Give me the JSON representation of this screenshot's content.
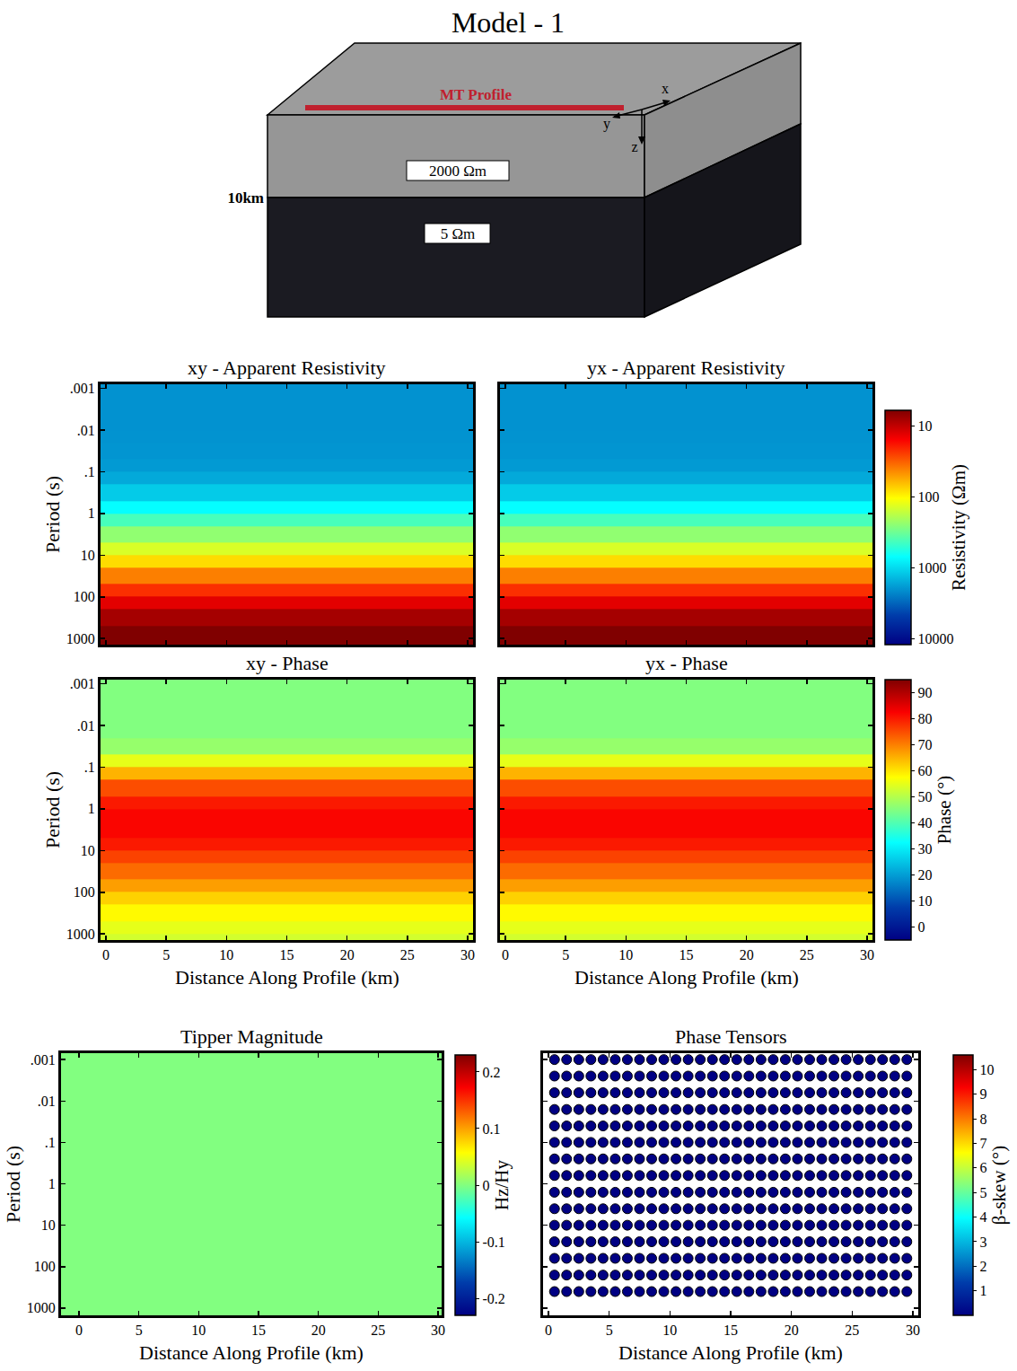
{
  "diagram": {
    "title": "Model - 1",
    "profile": "MT Profile",
    "layers": [
      "2000 Ωm",
      "5 Ωm"
    ],
    "depth": "10km",
    "axes": [
      "x",
      "y",
      "z"
    ]
  },
  "chart_data": [
    {
      "type": "heatmap",
      "title": "xy - Apparent Resistivity",
      "ylabel": "Period (s)",
      "log": "y",
      "tick_labels": "y",
      "xlim": [
        -0.45,
        30.45
      ],
      "xticks": [
        0,
        5,
        10,
        15,
        20,
        25,
        30
      ],
      "ylim": [
        1400,
        0.0008
      ],
      "yticks": [
        {
          "value": 0.001,
          "label": ".001"
        },
        {
          "value": 0.01,
          "label": ".01"
        },
        {
          "value": 0.1,
          "label": ".1"
        },
        1,
        10,
        100,
        1000
      ],
      "x_edges": [
        -0.5,
        30.5
      ],
      "y_edges": [
        0.0007,
        0.001,
        0.002,
        0.005,
        0.01,
        0.02,
        0.05,
        0.1,
        0.2,
        0.5,
        1,
        2,
        5,
        10,
        20,
        50,
        100,
        200,
        500,
        1000,
        1500
      ],
      "cells": [
        [
          2000
        ],
        [
          2000
        ],
        [
          2000
        ],
        [
          2000
        ],
        [
          1980
        ],
        [
          1950
        ],
        [
          1850
        ],
        [
          1600
        ],
        [
          1150
        ],
        [
          700
        ],
        [
          420
        ],
        [
          240
        ],
        [
          140
        ],
        [
          80
        ],
        [
          40
        ],
        [
          22
        ],
        [
          13
        ],
        [
          8
        ],
        [
          6
        ],
        [
          5.5
        ]
      ],
      "colorbar": {
        "range": [
          6,
          12000
        ],
        "log": true
      }
    },
    {
      "type": "heatmap",
      "title": "yx - Apparent Resistivity",
      "log": "y",
      "tick_labels": false,
      "xlim": [
        -0.45,
        30.45
      ],
      "xticks": [
        0,
        5,
        10,
        15,
        20,
        25,
        30
      ],
      "ylim": [
        1400,
        0.0008
      ],
      "yticks": [
        {
          "value": 0.001,
          "label": ".001"
        },
        {
          "value": 0.01,
          "label": ".01"
        },
        {
          "value": 0.1,
          "label": ".1"
        },
        1,
        10,
        100,
        1000
      ],
      "x_edges": [
        -0.5,
        30.5
      ],
      "y_edges": [
        0.0007,
        0.001,
        0.002,
        0.005,
        0.01,
        0.02,
        0.05,
        0.1,
        0.2,
        0.5,
        1,
        2,
        5,
        10,
        20,
        50,
        100,
        200,
        500,
        1000,
        1500
      ],
      "cells": [
        [
          2000
        ],
        [
          2000
        ],
        [
          2000
        ],
        [
          2000
        ],
        [
          1980
        ],
        [
          1950
        ],
        [
          1850
        ],
        [
          1600
        ],
        [
          1150
        ],
        [
          700
        ],
        [
          420
        ],
        [
          240
        ],
        [
          140
        ],
        [
          80
        ],
        [
          40
        ],
        [
          22
        ],
        [
          13
        ],
        [
          8
        ],
        [
          6
        ],
        [
          5.5
        ]
      ],
      "colorbar": {
        "title": "Resistivity (Ωm)",
        "range": [
          6,
          12000
        ],
        "ticks": [
          10,
          100,
          1000,
          10000
        ],
        "log": true
      }
    },
    {
      "type": "heatmap",
      "title": "xy - Phase",
      "ylabel": "Period (s)",
      "xlabel": "Distance Along Profile (km)",
      "log": "y",
      "tick_labels": true,
      "xlim": [
        -0.45,
        30.45
      ],
      "xticks": [
        0,
        5,
        10,
        15,
        20,
        25,
        30
      ],
      "ylim": [
        1400,
        0.0008
      ],
      "yticks": [
        {
          "value": 0.001,
          "label": ".001"
        },
        {
          "value": 0.01,
          "label": ".01"
        },
        {
          "value": 0.1,
          "label": ".1"
        },
        1,
        10,
        100,
        1000
      ],
      "x_edges": [
        -0.5,
        30.5
      ],
      "y_edges": [
        0.0007,
        0.001,
        0.002,
        0.005,
        0.01,
        0.02,
        0.05,
        0.1,
        0.2,
        0.5,
        1,
        2,
        5,
        10,
        20,
        50,
        100,
        200,
        500,
        1000,
        1500
      ],
      "cells": [
        [
          45
        ],
        [
          45
        ],
        [
          45
        ],
        [
          45
        ],
        [
          45
        ],
        [
          47
        ],
        [
          55
        ],
        [
          65
        ],
        [
          75
        ],
        [
          80
        ],
        [
          82
        ],
        [
          82
        ],
        [
          80
        ],
        [
          76
        ],
        [
          72
        ],
        [
          67
        ],
        [
          62
        ],
        [
          58
        ],
        [
          55
        ],
        [
          53
        ]
      ],
      "colorbar": {
        "range": [
          -5,
          95
        ]
      }
    },
    {
      "type": "heatmap",
      "title": "yx - Phase",
      "xlabel": "Distance Along Profile (km)",
      "log": "y",
      "tick_labels": "x",
      "xlim": [
        -0.45,
        30.45
      ],
      "xticks": [
        0,
        5,
        10,
        15,
        20,
        25,
        30
      ],
      "ylim": [
        1400,
        0.0008
      ],
      "yticks": [
        {
          "value": 0.001,
          "label": ".001"
        },
        {
          "value": 0.01,
          "label": ".01"
        },
        {
          "value": 0.1,
          "label": ".1"
        },
        1,
        10,
        100,
        1000
      ],
      "x_edges": [
        -0.5,
        30.5
      ],
      "y_edges": [
        0.0007,
        0.001,
        0.002,
        0.005,
        0.01,
        0.02,
        0.05,
        0.1,
        0.2,
        0.5,
        1,
        2,
        5,
        10,
        20,
        50,
        100,
        200,
        500,
        1000,
        1500
      ],
      "cells": [
        [
          45
        ],
        [
          45
        ],
        [
          45
        ],
        [
          45
        ],
        [
          45
        ],
        [
          47
        ],
        [
          55
        ],
        [
          65
        ],
        [
          75
        ],
        [
          80
        ],
        [
          82
        ],
        [
          82
        ],
        [
          80
        ],
        [
          76
        ],
        [
          72
        ],
        [
          67
        ],
        [
          62
        ],
        [
          58
        ],
        [
          55
        ],
        [
          53
        ]
      ],
      "colorbar": {
        "title": "Phase (°)",
        "range": [
          -5,
          95
        ],
        "ticks": [
          0,
          10,
          20,
          30,
          40,
          50,
          60,
          70,
          80,
          90
        ]
      }
    },
    {
      "type": "heatmap",
      "title": "Tipper Magnitude",
      "ylabel": "Period (s)",
      "xlabel": "Distance Along Profile (km)",
      "log": "y",
      "tick_labels": true,
      "xlim": [
        -1.5,
        30.3
      ],
      "xticks": [
        0,
        5,
        10,
        15,
        20,
        25,
        30
      ],
      "ylim": [
        1500,
        0.0007
      ],
      "yticks": [
        {
          "value": 0.001,
          "label": ".001"
        },
        {
          "value": 0.01,
          "label": ".01"
        },
        {
          "value": 0.1,
          "label": ".1"
        },
        1,
        10,
        100,
        1000
      ],
      "x_edges": [
        -1.5,
        30.5
      ],
      "y_edges": [
        0.0007,
        1500
      ],
      "cells": [
        [
          0
        ]
      ],
      "colorbar": {
        "title": "Hz/Hy",
        "range": [
          -0.23,
          0.23
        ],
        "ticks": [
          -0.2,
          -0.1,
          0,
          0.1,
          0.2
        ]
      }
    },
    {
      "type": "scatter",
      "title": "Phase Tensors",
      "xlabel": "Distance Along Profile (km)",
      "log": "y",
      "tick_labels": "x",
      "marker": "circle",
      "xlim": [
        -0.44,
        30.44
      ],
      "xticks": [
        0,
        5,
        10,
        15,
        20,
        25,
        30
      ],
      "ylim": [
        1500,
        0.0007
      ],
      "yticks": [
        {
          "value": 0.001,
          "label": ".001"
        },
        {
          "value": 0.01,
          "label": ".01"
        },
        {
          "value": 0.1,
          "label": ".1"
        },
        1,
        10,
        100,
        1000
      ],
      "x": [
        0.5,
        1.5,
        2.5,
        3.5,
        4.5,
        5.5,
        6.5,
        7.5,
        8.5,
        9.5,
        10.5,
        11.5,
        12.5,
        13.5,
        14.5,
        15.5,
        16.5,
        17.5,
        18.5,
        19.5,
        20.5,
        21.5,
        22.5,
        23.5,
        24.5,
        25.5,
        26.5,
        27.5,
        28.5,
        29.5
      ],
      "y": [
        0.001,
        0.0025,
        0.0063,
        0.016,
        0.04,
        0.1,
        0.25,
        0.63,
        1.6,
        4,
        10,
        25,
        63,
        160,
        400
      ],
      "beta_skew": [
        [
          0,
          0,
          0,
          0,
          0,
          0,
          0,
          0,
          0,
          0,
          0,
          0,
          0,
          0,
          0,
          0,
          0,
          0,
          0,
          0,
          0,
          0,
          0,
          0,
          0,
          0,
          0,
          0,
          0,
          0
        ],
        [
          0,
          0,
          0,
          0,
          0,
          0,
          0,
          0,
          0,
          0,
          0,
          0,
          0,
          0,
          0,
          0,
          0,
          0,
          0,
          0,
          0,
          0,
          0,
          0,
          0,
          0,
          0,
          0,
          0,
          0
        ],
        [
          0,
          0,
          0,
          0,
          0,
          0,
          0,
          0,
          0,
          0,
          0,
          0,
          0,
          0,
          0,
          0,
          0,
          0,
          0,
          0,
          0,
          0,
          0,
          0,
          0,
          0,
          0,
          0,
          0,
          0
        ],
        [
          0,
          0,
          0,
          0,
          0,
          0,
          0,
          0,
          0,
          0,
          0,
          0,
          0,
          0,
          0,
          0,
          0,
          0,
          0,
          0,
          0,
          0,
          0,
          0,
          0,
          0,
          0,
          0,
          0,
          0
        ],
        [
          0,
          0,
          0,
          0,
          0,
          0,
          0,
          0,
          0,
          0,
          0,
          0,
          0,
          0,
          0,
          0,
          0,
          0,
          0,
          0,
          0,
          0,
          0,
          0,
          0,
          0,
          0,
          0,
          0,
          0
        ],
        [
          0,
          0,
          0,
          0,
          0,
          0,
          0,
          0,
          0,
          0,
          0,
          0,
          0,
          0,
          0,
          0,
          0,
          0,
          0,
          0,
          0,
          0,
          0,
          0,
          0,
          0,
          0,
          0,
          0,
          0
        ],
        [
          0,
          0,
          0,
          0,
          0,
          0,
          0,
          0,
          0,
          0,
          0,
          0,
          0,
          0,
          0,
          0,
          0,
          0,
          0,
          0,
          0,
          0,
          0,
          0,
          0,
          0,
          0,
          0,
          0,
          0
        ],
        [
          0,
          0,
          0,
          0,
          0,
          0,
          0,
          0,
          0,
          0,
          0,
          0,
          0,
          0,
          0,
          0,
          0,
          0,
          0,
          0,
          0,
          0,
          0,
          0,
          0,
          0,
          0,
          0,
          0,
          0
        ],
        [
          0,
          0,
          0,
          0,
          0,
          0,
          0,
          0,
          0,
          0,
          0,
          0,
          0,
          0,
          0,
          0,
          0,
          0,
          0,
          0,
          0,
          0,
          0,
          0,
          0,
          0,
          0,
          0,
          0,
          0
        ],
        [
          0,
          0,
          0,
          0,
          0,
          0,
          0,
          0,
          0,
          0,
          0,
          0,
          0,
          0,
          0,
          0,
          0,
          0,
          0,
          0,
          0,
          0,
          0,
          0,
          0,
          0,
          0,
          0,
          0,
          0
        ],
        [
          0,
          0,
          0,
          0,
          0,
          0,
          0,
          0,
          0,
          0,
          0,
          0,
          0,
          0,
          0,
          0,
          0,
          0,
          0,
          0,
          0,
          0,
          0,
          0,
          0,
          0,
          0,
          0,
          0,
          0
        ],
        [
          0,
          0,
          0,
          0,
          0,
          0,
          0,
          0,
          0,
          0,
          0,
          0,
          0,
          0,
          0,
          0,
          0,
          0,
          0,
          0,
          0,
          0,
          0,
          0,
          0,
          0,
          0,
          0,
          0,
          0
        ],
        [
          0,
          0,
          0,
          0,
          0,
          0,
          0,
          0,
          0,
          0,
          0,
          0,
          0,
          0,
          0,
          0,
          0,
          0,
          0,
          0,
          0,
          0,
          0,
          0,
          0,
          0,
          0,
          0,
          0,
          0
        ],
        [
          0,
          0,
          0,
          0,
          0,
          0,
          0,
          0,
          0,
          0,
          0,
          0,
          0,
          0,
          0,
          0,
          0,
          0,
          0,
          0,
          0,
          0,
          0,
          0,
          0,
          0,
          0,
          0,
          0,
          0
        ],
        [
          0,
          0,
          0,
          0,
          0,
          0,
          0,
          0,
          0,
          0,
          0,
          0,
          0,
          0,
          0,
          0,
          0,
          0,
          0,
          0,
          0,
          0,
          0,
          0,
          0,
          0,
          0,
          0,
          0,
          0
        ]
      ],
      "colorbar": {
        "title": "β-skew (°)",
        "range": [
          0,
          10.6
        ],
        "ticks": [
          1,
          2,
          3,
          4,
          5,
          6,
          7,
          8,
          9,
          10
        ]
      }
    }
  ]
}
